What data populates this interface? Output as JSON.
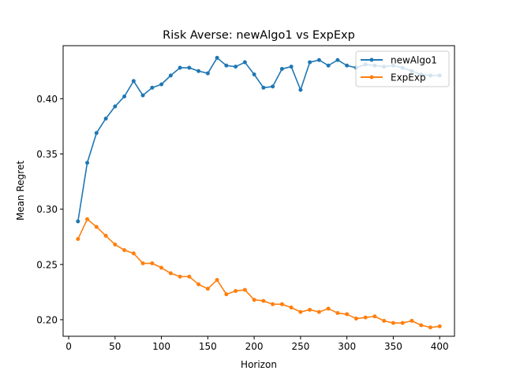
{
  "chart_data": {
    "type": "line",
    "title": "Risk Averse: newAlgo1 vs ExpExp",
    "xlabel": "Horizon",
    "ylabel": "Mean Regret",
    "xlim": [
      -6,
      416
    ],
    "ylim": [
      0.185,
      0.448
    ],
    "xticks": [
      0,
      50,
      100,
      150,
      200,
      250,
      300,
      350,
      400
    ],
    "yticks": [
      0.2,
      0.25,
      0.3,
      0.35,
      0.4
    ],
    "ytick_labels": [
      "0.20",
      "0.25",
      "0.30",
      "0.35",
      "0.40"
    ],
    "grid": false,
    "legend_position": "top-right",
    "x": [
      10,
      20,
      30,
      40,
      50,
      60,
      70,
      80,
      90,
      100,
      110,
      120,
      130,
      140,
      150,
      160,
      170,
      180,
      190,
      200,
      210,
      220,
      230,
      240,
      250,
      260,
      270,
      280,
      290,
      300,
      310,
      320,
      330,
      340,
      350,
      360,
      370,
      380,
      390,
      400
    ],
    "series": [
      {
        "name": "newAlgo1",
        "color": "#1f77b4",
        "values": [
          0.289,
          0.342,
          0.369,
          0.382,
          0.393,
          0.402,
          0.416,
          0.403,
          0.41,
          0.413,
          0.421,
          0.428,
          0.428,
          0.425,
          0.423,
          0.437,
          0.43,
          0.429,
          0.433,
          0.422,
          0.41,
          0.411,
          0.427,
          0.429,
          0.408,
          0.433,
          0.435,
          0.43,
          0.435,
          0.43,
          0.428,
          0.431,
          0.43,
          0.429,
          0.43,
          0.428,
          0.425,
          0.422,
          0.421,
          0.421
        ]
      },
      {
        "name": "ExpExp",
        "color": "#ff7f0e",
        "values": [
          0.273,
          0.291,
          0.284,
          0.276,
          0.268,
          0.263,
          0.26,
          0.251,
          0.251,
          0.247,
          0.242,
          0.239,
          0.239,
          0.232,
          0.228,
          0.236,
          0.223,
          0.226,
          0.227,
          0.218,
          0.217,
          0.214,
          0.214,
          0.211,
          0.207,
          0.209,
          0.207,
          0.21,
          0.206,
          0.205,
          0.201,
          0.202,
          0.203,
          0.199,
          0.197,
          0.197,
          0.199,
          0.195,
          0.193,
          0.194
        ]
      }
    ]
  }
}
